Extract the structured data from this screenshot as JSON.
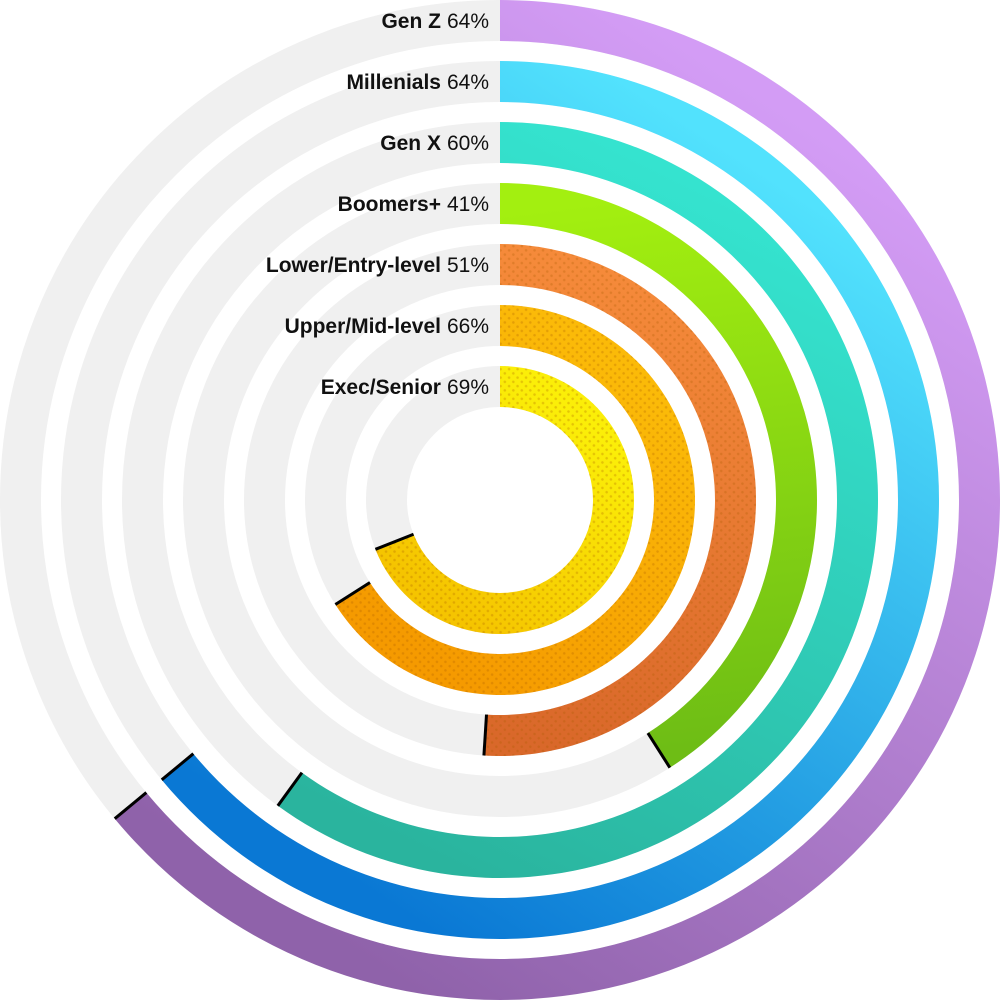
{
  "chart_data": {
    "type": "radial-bar",
    "title": "",
    "start_angle_deg": 0,
    "direction": "clockwise",
    "max": 100,
    "unit": "%",
    "series": [
      {
        "name": "Gen Z",
        "value": 64,
        "color_start": "#d39cf5",
        "color_end": "#8f62aa",
        "pattern": false
      },
      {
        "name": "Millenials",
        "value": 64,
        "color_start": "#52e2fd",
        "color_end": "#0a78d4",
        "pattern": false
      },
      {
        "name": "Gen X",
        "value": 60,
        "color_start": "#35e3cf",
        "color_end": "#2ab49e",
        "pattern": false
      },
      {
        "name": "Boomers+",
        "value": 41,
        "color_start": "#a3ef10",
        "color_end": "#6ebd15",
        "pattern": false
      },
      {
        "name": "Lower/Entry-level",
        "value": 51,
        "color_start": "#f58a3a",
        "color_end": "#d9682a",
        "pattern": true
      },
      {
        "name": "Upper/Mid-level",
        "value": 66,
        "color_start": "#fbba08",
        "color_end": "#f59a00",
        "pattern": true
      },
      {
        "name": "Exec/Senior",
        "value": 69,
        "color_start": "#fbee08",
        "color_end": "#f5c400",
        "pattern": true
      }
    ],
    "track_color": "#f0f0f0",
    "legend_position": "inline-top-left-of-rings",
    "grid": false
  },
  "labels": [
    {
      "name": "Gen Z",
      "pct": "64%"
    },
    {
      "name": "Millenials",
      "pct": "64%"
    },
    {
      "name": "Gen X",
      "pct": "60%"
    },
    {
      "name": "Boomers+",
      "pct": "41%"
    },
    {
      "name": "Lower/Entry-level",
      "pct": "51%"
    },
    {
      "name": "Upper/Mid-level",
      "pct": "66%"
    },
    {
      "name": "Exec/Senior",
      "pct": "69%"
    }
  ]
}
